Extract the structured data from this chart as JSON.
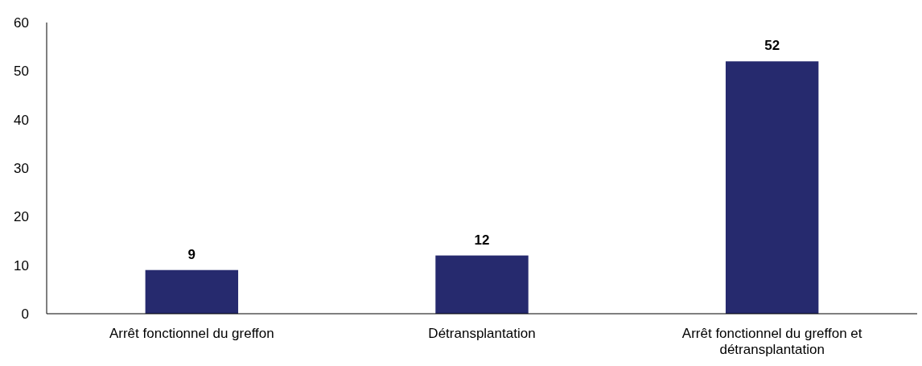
{
  "chart_data": {
    "type": "bar",
    "categories": [
      "Arrêt fonctionnel du greffon",
      "Détransplantation",
      "Arrêt fonctionnel du greffon et détransplantation"
    ],
    "values": [
      9,
      12,
      52
    ],
    "color": "#262a6e",
    "ylim": [
      0,
      60
    ],
    "yticks": [
      0,
      10,
      20,
      30,
      40,
      50,
      60
    ],
    "data_labels": true
  }
}
